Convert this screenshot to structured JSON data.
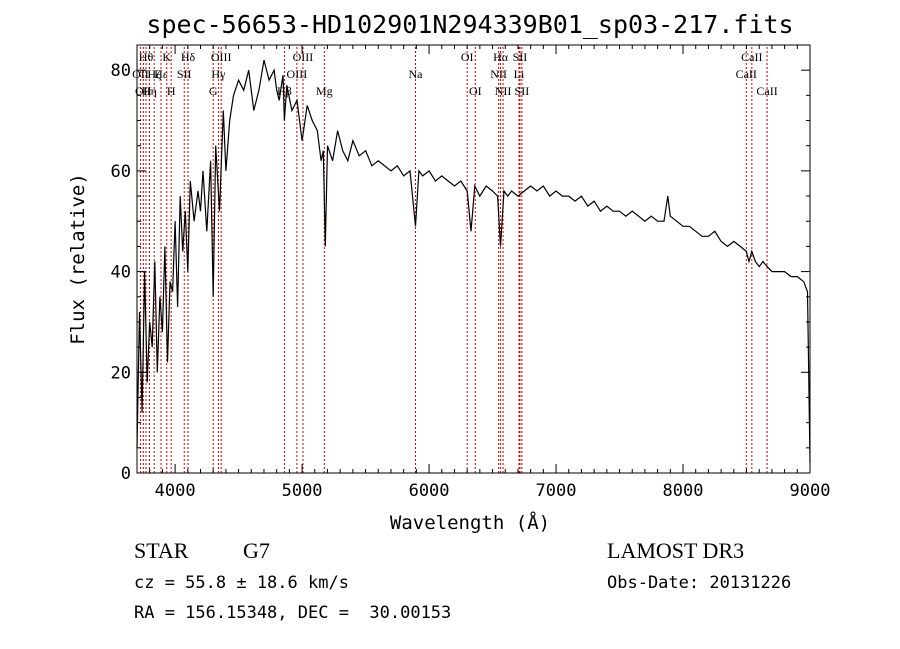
{
  "chart_data": {
    "type": "line",
    "title": "spec-56653-HD102901N294339B01_sp03-217.fits",
    "xlabel": "Wavelength (Å)",
    "ylabel": "Flux (relative)",
    "xlim": [
      3700,
      9000
    ],
    "ylim": [
      0,
      85
    ],
    "x_ticks": [
      4000,
      5000,
      6000,
      7000,
      8000,
      9000
    ],
    "y_ticks": [
      0,
      20,
      40,
      60,
      80
    ],
    "grid": false,
    "series": [
      {
        "x": [
          3700,
          3720,
          3740,
          3760,
          3780,
          3800,
          3820,
          3840,
          3860,
          3880,
          3900,
          3920,
          3940,
          3960,
          3980,
          4000,
          4020,
          4040,
          4060,
          4080,
          4100,
          4120,
          4150,
          4180,
          4200,
          4220,
          4250,
          4280,
          4300,
          4320,
          4350,
          4380,
          4400,
          4430,
          4460,
          4500,
          4540,
          4580,
          4620,
          4660,
          4700,
          4740,
          4780,
          4800,
          4820,
          4850,
          4861,
          4880,
          4920,
          4960,
          5000,
          5040,
          5080,
          5120,
          5150,
          5167,
          5183,
          5200,
          5240,
          5280,
          5320,
          5360,
          5400,
          5450,
          5500,
          5550,
          5600,
          5650,
          5700,
          5750,
          5800,
          5850,
          5893,
          5920,
          5950,
          6000,
          6050,
          6100,
          6150,
          6200,
          6250,
          6300,
          6330,
          6360,
          6400,
          6450,
          6500,
          6540,
          6563,
          6590,
          6620,
          6650,
          6700,
          6750,
          6800,
          6850,
          6900,
          6950,
          7000,
          7050,
          7100,
          7150,
          7200,
          7250,
          7300,
          7350,
          7400,
          7450,
          7500,
          7550,
          7600,
          7650,
          7700,
          7750,
          7800,
          7850,
          7880,
          7900,
          7950,
          8000,
          8050,
          8100,
          8150,
          8200,
          8250,
          8300,
          8350,
          8400,
          8450,
          8498,
          8520,
          8542,
          8570,
          8600,
          8630,
          8662,
          8700,
          8750,
          8800,
          8850,
          8900,
          8950,
          8980,
          8990,
          9000
        ],
        "values": [
          5,
          32,
          12,
          40,
          18,
          30,
          25,
          42,
          20,
          35,
          28,
          45,
          22,
          38,
          36,
          50,
          33,
          55,
          44,
          52,
          40,
          58,
          50,
          56,
          52,
          60,
          48,
          62,
          35,
          65,
          52,
          72,
          60,
          70,
          75,
          78,
          76,
          80,
          72,
          76,
          82,
          78,
          80,
          76,
          74,
          79,
          70,
          77,
          72,
          74,
          66,
          73,
          70,
          68,
          62,
          64,
          45,
          65,
          62,
          68,
          64,
          62,
          66,
          63,
          64,
          61,
          62,
          61,
          60,
          61,
          59,
          60,
          49,
          60,
          59,
          60,
          58,
          59,
          58,
          57,
          58,
          56,
          48,
          57,
          55,
          57,
          56,
          55,
          45,
          56,
          55,
          56,
          55,
          56,
          57,
          56,
          57,
          55,
          56,
          55,
          55,
          54,
          55,
          53,
          54,
          52,
          53,
          52,
          52,
          51,
          52,
          51,
          50,
          51,
          50,
          50,
          55,
          51,
          50,
          49,
          49,
          48,
          47,
          47,
          48,
          46,
          45,
          46,
          45,
          44,
          42,
          44,
          42,
          41,
          42,
          41,
          40,
          40,
          40,
          39,
          39,
          38,
          36,
          20,
          2
        ]
      }
    ],
    "lines": [
      {
        "x": 3727,
        "label": "OII",
        "row": 1
      },
      {
        "x": 3750,
        "label": "OII",
        "row": 2
      },
      {
        "x": 3771,
        "label": "Hθ",
        "row": 0
      },
      {
        "x": 3798,
        "label": "Hη",
        "row": 2
      },
      {
        "x": 3835,
        "label": "Hζ",
        "row": 1
      },
      {
        "x": 3889,
        "label": "Hε",
        "row": 1
      },
      {
        "x": 3934,
        "label": "K",
        "row": 0
      },
      {
        "x": 3969,
        "label": "H",
        "row": 2
      },
      {
        "x": 4072,
        "label": "SII",
        "row": 1
      },
      {
        "x": 4102,
        "label": "Hδ",
        "row": 0
      },
      {
        "x": 4300,
        "label": "G",
        "row": 2
      },
      {
        "x": 4341,
        "label": "Hγ",
        "row": 1
      },
      {
        "x": 4363,
        "label": "OIII",
        "row": 0
      },
      {
        "x": 4861,
        "label": "Hβ",
        "row": 2
      },
      {
        "x": 4959,
        "label": "OIII",
        "row": 1
      },
      {
        "x": 5007,
        "label": "OIII",
        "row": 0
      },
      {
        "x": 5175,
        "label": "Mg",
        "row": 2
      },
      {
        "x": 5893,
        "label": "Na",
        "row": 1
      },
      {
        "x": 6300,
        "label": "OI",
        "row": 0
      },
      {
        "x": 6364,
        "label": "OI",
        "row": 2
      },
      {
        "x": 6548,
        "label": "NII",
        "row": 1
      },
      {
        "x": 6563,
        "label": "Hα",
        "row": 0
      },
      {
        "x": 6583,
        "label": "NII",
        "row": 2
      },
      {
        "x": 6708,
        "label": "Li",
        "row": 1
      },
      {
        "x": 6716,
        "label": "SII",
        "row": 0
      },
      {
        "x": 6731,
        "label": "SII",
        "row": 2
      },
      {
        "x": 8498,
        "label": "CaII",
        "row": 1
      },
      {
        "x": 8542,
        "label": "CaII",
        "row": 0
      },
      {
        "x": 8662,
        "label": "CaII",
        "row": 2
      }
    ],
    "line_color": "#cc0000",
    "spectrum_color": "#000000"
  },
  "info": {
    "class": "STAR",
    "subclass": "G7",
    "survey": "LAMOST DR3",
    "cz": "cz = 55.8 ± 18.6 km/s",
    "obs_date": "Obs-Date: 20131226",
    "coords": "RA = 156.15348, DEC =  30.00153"
  }
}
